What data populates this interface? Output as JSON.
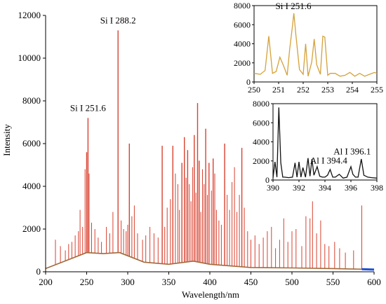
{
  "chart_data": [
    {
      "type": "line",
      "xlabel": "Wavelength/nm",
      "ylabel": "Intensity",
      "xlim": [
        200,
        600
      ],
      "ylim": [
        0,
        12000
      ],
      "x_ticks": [
        200,
        250,
        300,
        350,
        400,
        450,
        500,
        550,
        600
      ],
      "y_ticks": [
        0,
        2000,
        4000,
        6000,
        8000,
        10000,
        12000
      ],
      "colors": {
        "lines": "#d9412f",
        "baseline": "#a06a3a",
        "tail": "#1f4fd6"
      },
      "continuum": [
        {
          "x": 200,
          "y": 150
        },
        {
          "x": 230,
          "y": 600
        },
        {
          "x": 250,
          "y": 900
        },
        {
          "x": 270,
          "y": 850
        },
        {
          "x": 290,
          "y": 900
        },
        {
          "x": 320,
          "y": 450
        },
        {
          "x": 350,
          "y": 350
        },
        {
          "x": 380,
          "y": 500
        },
        {
          "x": 400,
          "y": 350
        },
        {
          "x": 450,
          "y": 200
        },
        {
          "x": 500,
          "y": 180
        },
        {
          "x": 550,
          "y": 150
        },
        {
          "x": 585,
          "y": 120
        },
        {
          "x": 600,
          "y": 100
        }
      ],
      "peaks": [
        {
          "x": 212,
          "y": 1500
        },
        {
          "x": 218,
          "y": 1200
        },
        {
          "x": 224,
          "y": 1000
        },
        {
          "x": 228,
          "y": 1300
        },
        {
          "x": 232,
          "y": 1400
        },
        {
          "x": 236,
          "y": 1700
        },
        {
          "x": 240,
          "y": 1900
        },
        {
          "x": 242,
          "y": 2900
        },
        {
          "x": 245,
          "y": 2100
        },
        {
          "x": 248,
          "y": 4800
        },
        {
          "x": 250,
          "y": 5600
        },
        {
          "x": 251.6,
          "y": 7200
        },
        {
          "x": 253,
          "y": 4600
        },
        {
          "x": 256,
          "y": 2300
        },
        {
          "x": 260,
          "y": 2000
        },
        {
          "x": 264,
          "y": 1600
        },
        {
          "x": 268,
          "y": 1400
        },
        {
          "x": 274,
          "y": 2100
        },
        {
          "x": 278,
          "y": 1800
        },
        {
          "x": 282,
          "y": 2800
        },
        {
          "x": 288.2,
          "y": 11300
        },
        {
          "x": 292,
          "y": 2400
        },
        {
          "x": 295,
          "y": 2000
        },
        {
          "x": 298,
          "y": 1900
        },
        {
          "x": 300,
          "y": 2200
        },
        {
          "x": 302,
          "y": 6000
        },
        {
          "x": 305,
          "y": 2600
        },
        {
          "x": 308,
          "y": 3100
        },
        {
          "x": 312,
          "y": 1800
        },
        {
          "x": 318,
          "y": 1500
        },
        {
          "x": 322,
          "y": 1700
        },
        {
          "x": 327,
          "y": 2100
        },
        {
          "x": 332,
          "y": 1800
        },
        {
          "x": 337,
          "y": 1600
        },
        {
          "x": 342,
          "y": 5900
        },
        {
          "x": 345,
          "y": 2100
        },
        {
          "x": 348,
          "y": 3000
        },
        {
          "x": 352,
          "y": 3400
        },
        {
          "x": 355,
          "y": 5900
        },
        {
          "x": 358,
          "y": 4600
        },
        {
          "x": 361,
          "y": 4100
        },
        {
          "x": 363,
          "y": 2900
        },
        {
          "x": 366,
          "y": 5100
        },
        {
          "x": 369,
          "y": 6300
        },
        {
          "x": 371,
          "y": 4400
        },
        {
          "x": 373,
          "y": 5700
        },
        {
          "x": 375,
          "y": 4100
        },
        {
          "x": 377,
          "y": 3300
        },
        {
          "x": 379,
          "y": 4900
        },
        {
          "x": 381,
          "y": 6400
        },
        {
          "x": 383,
          "y": 3700
        },
        {
          "x": 385,
          "y": 7900
        },
        {
          "x": 387,
          "y": 5200
        },
        {
          "x": 389,
          "y": 2800
        },
        {
          "x": 391,
          "y": 4800
        },
        {
          "x": 393,
          "y": 4100
        },
        {
          "x": 395,
          "y": 6700
        },
        {
          "x": 397,
          "y": 3600
        },
        {
          "x": 399,
          "y": 5100
        },
        {
          "x": 402,
          "y": 3800
        },
        {
          "x": 404,
          "y": 5300
        },
        {
          "x": 406,
          "y": 4600
        },
        {
          "x": 408,
          "y": 2900
        },
        {
          "x": 411,
          "y": 2400
        },
        {
          "x": 414,
          "y": 2200
        },
        {
          "x": 418,
          "y": 6000
        },
        {
          "x": 421,
          "y": 3600
        },
        {
          "x": 424,
          "y": 2900
        },
        {
          "x": 427,
          "y": 4200
        },
        {
          "x": 430,
          "y": 4900
        },
        {
          "x": 433,
          "y": 2800
        },
        {
          "x": 436,
          "y": 3600
        },
        {
          "x": 439,
          "y": 5800
        },
        {
          "x": 442,
          "y": 3000
        },
        {
          "x": 446,
          "y": 1900
        },
        {
          "x": 450,
          "y": 1500
        },
        {
          "x": 455,
          "y": 1700
        },
        {
          "x": 460,
          "y": 1300
        },
        {
          "x": 465,
          "y": 1600
        },
        {
          "x": 470,
          "y": 1900
        },
        {
          "x": 475,
          "y": 2100
        },
        {
          "x": 480,
          "y": 1100
        },
        {
          "x": 485,
          "y": 1500
        },
        {
          "x": 490,
          "y": 2500
        },
        {
          "x": 495,
          "y": 1400
        },
        {
          "x": 500,
          "y": 1900
        },
        {
          "x": 505,
          "y": 2000
        },
        {
          "x": 512,
          "y": 1200
        },
        {
          "x": 517,
          "y": 2600
        },
        {
          "x": 522,
          "y": 2500
        },
        {
          "x": 525,
          "y": 3300
        },
        {
          "x": 530,
          "y": 1800
        },
        {
          "x": 535,
          "y": 2400
        },
        {
          "x": 540,
          "y": 1300
        },
        {
          "x": 545,
          "y": 1200
        },
        {
          "x": 552,
          "y": 1400
        },
        {
          "x": 558,
          "y": 1100
        },
        {
          "x": 565,
          "y": 900
        },
        {
          "x": 575,
          "y": 1000
        },
        {
          "x": 585,
          "y": 3100
        }
      ],
      "annotations": [
        {
          "text": "Si I 288.2",
          "x": 288.2,
          "y": 11300
        },
        {
          "text": "Si I 251.6",
          "x": 251.6,
          "y": 7200
        }
      ]
    },
    {
      "type": "line",
      "xlim": [
        250,
        255
      ],
      "ylim": [
        0,
        8000
      ],
      "x_ticks": [
        250,
        251,
        252,
        253,
        254,
        255
      ],
      "y_ticks": [
        0,
        2000,
        4000,
        6000,
        8000
      ],
      "color": "#d4a13a",
      "x": [
        250,
        250.25,
        250.45,
        250.6,
        250.75,
        250.9,
        251.05,
        251.2,
        251.35,
        251.45,
        251.55,
        251.62,
        251.7,
        251.85,
        252.0,
        252.1,
        252.2,
        252.35,
        252.45,
        252.55,
        252.7,
        252.8,
        252.88,
        253.0,
        253.1,
        253.3,
        253.5,
        253.7,
        253.9,
        254.1,
        254.3,
        254.5,
        254.7,
        254.9,
        255
      ],
      "y": [
        900,
        800,
        1200,
        4800,
        900,
        1100,
        2600,
        1700,
        700,
        3400,
        5600,
        7200,
        5000,
        1300,
        800,
        4000,
        600,
        2100,
        4500,
        1800,
        800,
        4800,
        4700,
        700,
        900,
        900,
        600,
        700,
        1000,
        600,
        900,
        600,
        800,
        1000,
        900
      ],
      "annotations": [
        {
          "text": "Si I 251.6",
          "x": 251.6,
          "y": 7200
        }
      ]
    },
    {
      "type": "line",
      "xlim": [
        390,
        398
      ],
      "ylim": [
        0,
        8000
      ],
      "x_ticks": [
        390,
        392,
        394,
        396,
        398
      ],
      "y_ticks": [
        0,
        2000,
        4000,
        6000,
        8000
      ],
      "color": "#111111",
      "x": [
        390,
        390.15,
        390.3,
        390.45,
        390.6,
        390.75,
        390.9,
        391.2,
        391.5,
        391.7,
        391.85,
        392.0,
        392.15,
        392.3,
        392.5,
        392.7,
        392.85,
        393.0,
        393.15,
        393.4,
        393.6,
        393.8,
        394.0,
        394.2,
        394.4,
        394.6,
        394.8,
        395.1,
        395.4,
        395.7,
        396.0,
        396.15,
        396.35,
        396.55,
        396.8,
        397.0,
        397.3,
        397.6,
        398
      ],
      "y": [
        200,
        1900,
        300,
        7600,
        1800,
        300,
        300,
        250,
        300,
        1800,
        300,
        1900,
        300,
        1300,
        300,
        2300,
        400,
        2200,
        500,
        1400,
        400,
        300,
        300,
        500,
        1100,
        300,
        300,
        600,
        200,
        300,
        1400,
        600,
        300,
        300,
        2200,
        500,
        300,
        250,
        200
      ],
      "annotations": [
        {
          "text": "Al I 396.1",
          "x": 396.1,
          "y": 2300
        },
        {
          "text": "Al I 394.4",
          "x": 394.4,
          "y": 1200
        }
      ]
    }
  ]
}
